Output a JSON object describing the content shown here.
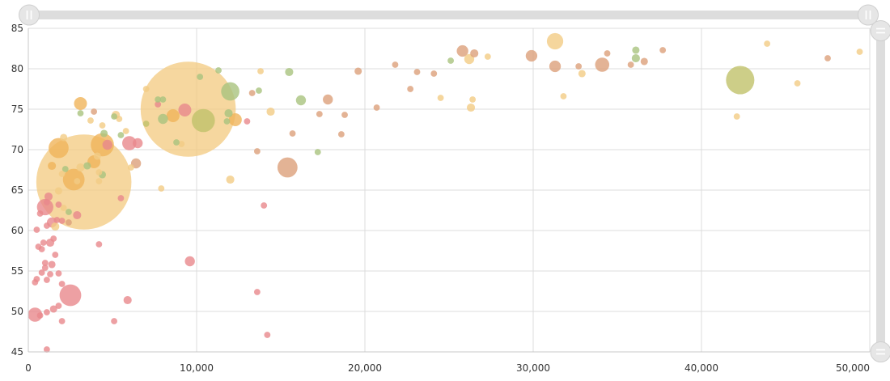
{
  "colors": {
    "red": "#e8888c",
    "orange": "#f0b45a",
    "yellow": "#f3cc84",
    "green": "#a9c37e",
    "tan": "#dca07a",
    "olive": "#c0c26a",
    "grid": "#dcdcdc",
    "scrollbar": "#dddddd"
  },
  "chart_data": {
    "type": "scatter",
    "title": "",
    "xlabel": "",
    "ylabel": "",
    "xlim": [
      0,
      50000
    ],
    "ylim": [
      45,
      85
    ],
    "grid": true,
    "x_tick_labels": [
      "0",
      "10,000",
      "20,000",
      "30,000",
      "40,000",
      "50,000"
    ],
    "y_tick_labels": [
      "45",
      "50",
      "55",
      "60",
      "65",
      "70",
      "75",
      "80",
      "85"
    ],
    "points": [
      {
        "x": 9500,
        "y": 75,
        "size": 1350,
        "color": "yellow"
      },
      {
        "x": 3300,
        "y": 66,
        "size": 1350,
        "color": "yellow"
      },
      {
        "x": 42300,
        "y": 78.6,
        "size": 120,
        "color": "olive"
      },
      {
        "x": 15400,
        "y": 67.8,
        "size": 60,
        "color": "tan"
      },
      {
        "x": 10400,
        "y": 73.6,
        "size": 80,
        "color": "olive"
      },
      {
        "x": 12000,
        "y": 77.2,
        "size": 50,
        "color": "green"
      },
      {
        "x": 4400,
        "y": 70.6,
        "size": 80,
        "color": "orange"
      },
      {
        "x": 2700,
        "y": 66.3,
        "size": 70,
        "color": "orange"
      },
      {
        "x": 1800,
        "y": 70.2,
        "size": 60,
        "color": "orange"
      },
      {
        "x": 2500,
        "y": 52,
        "size": 70,
        "color": "red"
      },
      {
        "x": 1000,
        "y": 62.9,
        "size": 40,
        "color": "red"
      },
      {
        "x": 400,
        "y": 49.6,
        "size": 30,
        "color": "red"
      },
      {
        "x": 6000,
        "y": 70.8,
        "size": 30,
        "color": "red"
      },
      {
        "x": 31300,
        "y": 83.4,
        "size": 40,
        "color": "yellow"
      },
      {
        "x": 31300,
        "y": 80.3,
        "size": 20,
        "color": "tan"
      },
      {
        "x": 34100,
        "y": 80.5,
        "size": 30,
        "color": "tan"
      },
      {
        "x": 29900,
        "y": 81.6,
        "size": 20,
        "color": "tan"
      },
      {
        "x": 25800,
        "y": 82.2,
        "size": 20,
        "color": "tan"
      },
      {
        "x": 26200,
        "y": 81.2,
        "size": 15,
        "color": "yellow"
      },
      {
        "x": 26500,
        "y": 81.9,
        "size": 10,
        "color": "tan"
      },
      {
        "x": 36100,
        "y": 81.3,
        "size": 10,
        "color": "green"
      },
      {
        "x": 36100,
        "y": 82.3,
        "size": 8,
        "color": "green"
      },
      {
        "x": 36600,
        "y": 80.9,
        "size": 8,
        "color": "tan"
      },
      {
        "x": 37700,
        "y": 82.3,
        "size": 6,
        "color": "tan"
      },
      {
        "x": 43900,
        "y": 83.1,
        "size": 6,
        "color": "yellow"
      },
      {
        "x": 45700,
        "y": 78.2,
        "size": 6,
        "color": "yellow"
      },
      {
        "x": 47500,
        "y": 81.3,
        "size": 6,
        "color": "tan"
      },
      {
        "x": 49400,
        "y": 82.1,
        "size": 6,
        "color": "yellow"
      },
      {
        "x": 42100,
        "y": 74.1,
        "size": 6,
        "color": "yellow"
      },
      {
        "x": 32700,
        "y": 80.3,
        "size": 6,
        "color": "tan"
      },
      {
        "x": 32900,
        "y": 79.4,
        "size": 8,
        "color": "yellow"
      },
      {
        "x": 34400,
        "y": 81.9,
        "size": 6,
        "color": "tan"
      },
      {
        "x": 35800,
        "y": 80.5,
        "size": 6,
        "color": "tan"
      },
      {
        "x": 31800,
        "y": 76.6,
        "size": 6,
        "color": "yellow"
      },
      {
        "x": 26300,
        "y": 75.2,
        "size": 10,
        "color": "yellow"
      },
      {
        "x": 26400,
        "y": 76.2,
        "size": 6,
        "color": "yellow"
      },
      {
        "x": 24500,
        "y": 76.4,
        "size": 6,
        "color": "yellow"
      },
      {
        "x": 25100,
        "y": 81,
        "size": 6,
        "color": "green"
      },
      {
        "x": 27300,
        "y": 81.5,
        "size": 6,
        "color": "yellow"
      },
      {
        "x": 21800,
        "y": 80.5,
        "size": 6,
        "color": "tan"
      },
      {
        "x": 22700,
        "y": 77.5,
        "size": 6,
        "color": "tan"
      },
      {
        "x": 23100,
        "y": 79.6,
        "size": 6,
        "color": "tan"
      },
      {
        "x": 24100,
        "y": 79.4,
        "size": 6,
        "color": "tan"
      },
      {
        "x": 20700,
        "y": 75.2,
        "size": 6,
        "color": "tan"
      },
      {
        "x": 19600,
        "y": 79.7,
        "size": 8,
        "color": "tan"
      },
      {
        "x": 17800,
        "y": 76.2,
        "size": 15,
        "color": "tan"
      },
      {
        "x": 18600,
        "y": 71.9,
        "size": 6,
        "color": "tan"
      },
      {
        "x": 18800,
        "y": 74.3,
        "size": 6,
        "color": "tan"
      },
      {
        "x": 17300,
        "y": 74.4,
        "size": 6,
        "color": "tan"
      },
      {
        "x": 17200,
        "y": 69.7,
        "size": 6,
        "color": "green"
      },
      {
        "x": 16200,
        "y": 76.1,
        "size": 15,
        "color": "green"
      },
      {
        "x": 15500,
        "y": 79.6,
        "size": 10,
        "color": "green"
      },
      {
        "x": 15700,
        "y": 72,
        "size": 6,
        "color": "tan"
      },
      {
        "x": 14400,
        "y": 74.7,
        "size": 10,
        "color": "yellow"
      },
      {
        "x": 13800,
        "y": 79.7,
        "size": 6,
        "color": "yellow"
      },
      {
        "x": 13700,
        "y": 77.3,
        "size": 6,
        "color": "green"
      },
      {
        "x": 13300,
        "y": 77,
        "size": 6,
        "color": "tan"
      },
      {
        "x": 13600,
        "y": 69.8,
        "size": 6,
        "color": "tan"
      },
      {
        "x": 13000,
        "y": 73.5,
        "size": 6,
        "color": "red"
      },
      {
        "x": 12300,
        "y": 73.7,
        "size": 25,
        "color": "orange"
      },
      {
        "x": 11900,
        "y": 74.5,
        "size": 10,
        "color": "green"
      },
      {
        "x": 12000,
        "y": 66.3,
        "size": 10,
        "color": "yellow"
      },
      {
        "x": 11800,
        "y": 73.5,
        "size": 6,
        "color": "green"
      },
      {
        "x": 11300,
        "y": 79.8,
        "size": 6,
        "color": "green"
      },
      {
        "x": 10200,
        "y": 79,
        "size": 6,
        "color": "green"
      },
      {
        "x": 9300,
        "y": 74.9,
        "size": 25,
        "color": "red"
      },
      {
        "x": 9100,
        "y": 70.7,
        "size": 6,
        "color": "yellow"
      },
      {
        "x": 8600,
        "y": 74.2,
        "size": 25,
        "color": "orange"
      },
      {
        "x": 8000,
        "y": 73.8,
        "size": 15,
        "color": "green"
      },
      {
        "x": 8000,
        "y": 76.2,
        "size": 6,
        "color": "green"
      },
      {
        "x": 7700,
        "y": 75.6,
        "size": 6,
        "color": "red"
      },
      {
        "x": 7700,
        "y": 76.2,
        "size": 6,
        "color": "green"
      },
      {
        "x": 8800,
        "y": 70.9,
        "size": 6,
        "color": "green"
      },
      {
        "x": 7900,
        "y": 65.2,
        "size": 6,
        "color": "yellow"
      },
      {
        "x": 7000,
        "y": 77.5,
        "size": 6,
        "color": "yellow"
      },
      {
        "x": 7000,
        "y": 73.2,
        "size": 6,
        "color": "olive"
      },
      {
        "x": 6500,
        "y": 70.8,
        "size": 15,
        "color": "red"
      },
      {
        "x": 6400,
        "y": 68.3,
        "size": 15,
        "color": "tan"
      },
      {
        "x": 6100,
        "y": 67.8,
        "size": 6,
        "color": "yellow"
      },
      {
        "x": 5800,
        "y": 72.3,
        "size": 6,
        "color": "yellow"
      },
      {
        "x": 5500,
        "y": 71.8,
        "size": 6,
        "color": "green"
      },
      {
        "x": 5200,
        "y": 74.3,
        "size": 10,
        "color": "yellow"
      },
      {
        "x": 5400,
        "y": 73.8,
        "size": 6,
        "color": "yellow"
      },
      {
        "x": 5100,
        "y": 74.1,
        "size": 6,
        "color": "green"
      },
      {
        "x": 4700,
        "y": 70.6,
        "size": 15,
        "color": "red"
      },
      {
        "x": 4500,
        "y": 72,
        "size": 8,
        "color": "green"
      },
      {
        "x": 4400,
        "y": 73,
        "size": 6,
        "color": "yellow"
      },
      {
        "x": 4100,
        "y": 69.2,
        "size": 8,
        "color": "yellow"
      },
      {
        "x": 3900,
        "y": 68.5,
        "size": 25,
        "color": "orange"
      },
      {
        "x": 3700,
        "y": 73.6,
        "size": 6,
        "color": "yellow"
      },
      {
        "x": 3900,
        "y": 74.7,
        "size": 6,
        "color": "tan"
      },
      {
        "x": 4200,
        "y": 67.2,
        "size": 6,
        "color": "yellow"
      },
      {
        "x": 4400,
        "y": 66.9,
        "size": 8,
        "color": "green"
      },
      {
        "x": 4200,
        "y": 66.1,
        "size": 6,
        "color": "yellow"
      },
      {
        "x": 3500,
        "y": 68,
        "size": 8,
        "color": "green"
      },
      {
        "x": 3100,
        "y": 67.8,
        "size": 10,
        "color": "yellow"
      },
      {
        "x": 3100,
        "y": 75.7,
        "size": 25,
        "color": "orange"
      },
      {
        "x": 3100,
        "y": 74.5,
        "size": 6,
        "color": "green"
      },
      {
        "x": 2900,
        "y": 66.1,
        "size": 6,
        "color": "yellow"
      },
      {
        "x": 2100,
        "y": 71.5,
        "size": 8,
        "color": "yellow"
      },
      {
        "x": 2200,
        "y": 67.6,
        "size": 6,
        "color": "green"
      },
      {
        "x": 2000,
        "y": 67,
        "size": 6,
        "color": "yellow"
      },
      {
        "x": 1400,
        "y": 68,
        "size": 10,
        "color": "orange"
      },
      {
        "x": 1800,
        "y": 64.9,
        "size": 8,
        "color": "yellow"
      },
      {
        "x": 1800,
        "y": 63.2,
        "size": 6,
        "color": "red"
      },
      {
        "x": 2100,
        "y": 62.8,
        "size": 6,
        "color": "yellow"
      },
      {
        "x": 2400,
        "y": 62.3,
        "size": 6,
        "color": "green"
      },
      {
        "x": 2900,
        "y": 61.9,
        "size": 10,
        "color": "red"
      },
      {
        "x": 1200,
        "y": 64.2,
        "size": 10,
        "color": "red"
      },
      {
        "x": 1100,
        "y": 63.5,
        "size": 6,
        "color": "red"
      },
      {
        "x": 700,
        "y": 62.1,
        "size": 6,
        "color": "red"
      },
      {
        "x": 1400,
        "y": 61,
        "size": 15,
        "color": "red"
      },
      {
        "x": 1600,
        "y": 60.5,
        "size": 10,
        "color": "yellow"
      },
      {
        "x": 1700,
        "y": 61.3,
        "size": 6,
        "color": "red"
      },
      {
        "x": 2000,
        "y": 61.2,
        "size": 6,
        "color": "red"
      },
      {
        "x": 1100,
        "y": 60.6,
        "size": 6,
        "color": "red"
      },
      {
        "x": 2400,
        "y": 61,
        "size": 6,
        "color": "tan"
      },
      {
        "x": 500,
        "y": 60.1,
        "size": 6,
        "color": "red"
      },
      {
        "x": 1500,
        "y": 59,
        "size": 6,
        "color": "red"
      },
      {
        "x": 1300,
        "y": 58.5,
        "size": 10,
        "color": "red"
      },
      {
        "x": 900,
        "y": 58.5,
        "size": 6,
        "color": "red"
      },
      {
        "x": 600,
        "y": 58,
        "size": 6,
        "color": "red"
      },
      {
        "x": 800,
        "y": 57.7,
        "size": 6,
        "color": "red"
      },
      {
        "x": 1600,
        "y": 57,
        "size": 6,
        "color": "red"
      },
      {
        "x": 1000,
        "y": 56,
        "size": 6,
        "color": "red"
      },
      {
        "x": 1400,
        "y": 55.8,
        "size": 8,
        "color": "red"
      },
      {
        "x": 1000,
        "y": 55.4,
        "size": 6,
        "color": "red"
      },
      {
        "x": 800,
        "y": 54.8,
        "size": 6,
        "color": "red"
      },
      {
        "x": 1300,
        "y": 54.6,
        "size": 6,
        "color": "red"
      },
      {
        "x": 1800,
        "y": 54.7,
        "size": 6,
        "color": "red"
      },
      {
        "x": 500,
        "y": 54,
        "size": 6,
        "color": "red"
      },
      {
        "x": 1100,
        "y": 53.9,
        "size": 6,
        "color": "red"
      },
      {
        "x": 400,
        "y": 53.6,
        "size": 6,
        "color": "red"
      },
      {
        "x": 2000,
        "y": 53.4,
        "size": 6,
        "color": "red"
      },
      {
        "x": 1800,
        "y": 50.7,
        "size": 6,
        "color": "red"
      },
      {
        "x": 1500,
        "y": 50.3,
        "size": 8,
        "color": "red"
      },
      {
        "x": 1100,
        "y": 49.9,
        "size": 6,
        "color": "red"
      },
      {
        "x": 700,
        "y": 49.5,
        "size": 6,
        "color": "red"
      },
      {
        "x": 2000,
        "y": 48.8,
        "size": 6,
        "color": "red"
      },
      {
        "x": 1100,
        "y": 45.3,
        "size": 6,
        "color": "red"
      },
      {
        "x": 5100,
        "y": 48.8,
        "size": 6,
        "color": "red"
      },
      {
        "x": 5900,
        "y": 51.4,
        "size": 10,
        "color": "red"
      },
      {
        "x": 4200,
        "y": 58.3,
        "size": 6,
        "color": "red"
      },
      {
        "x": 5500,
        "y": 64,
        "size": 6,
        "color": "red"
      },
      {
        "x": 9600,
        "y": 56.2,
        "size": 15,
        "color": "red"
      },
      {
        "x": 13600,
        "y": 52.4,
        "size": 6,
        "color": "red"
      },
      {
        "x": 14000,
        "y": 63.1,
        "size": 6,
        "color": "red"
      },
      {
        "x": 14200,
        "y": 47.1,
        "size": 6,
        "color": "red"
      }
    ]
  }
}
